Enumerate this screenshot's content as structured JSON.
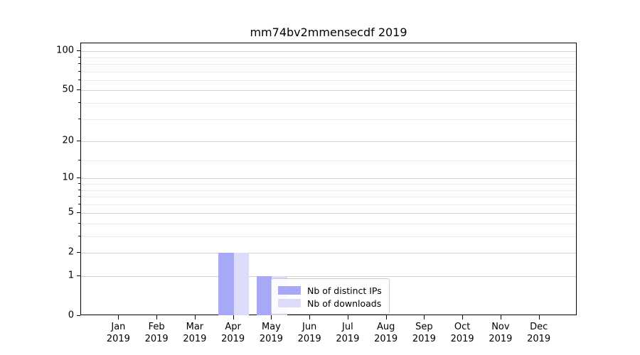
{
  "title": "mm74bv2mmensecdf 2019",
  "chart_data": {
    "type": "bar",
    "title": "mm74bv2mmensecdf 2019",
    "categories": [
      "Jan 2019",
      "Feb 2019",
      "Mar 2019",
      "Apr 2019",
      "May 2019",
      "Jun 2019",
      "Jul 2019",
      "Aug 2019",
      "Sep 2019",
      "Oct 2019",
      "Nov 2019",
      "Dec 2019"
    ],
    "x_tick_months": [
      "Jan",
      "Feb",
      "Mar",
      "Apr",
      "May",
      "Jun",
      "Jul",
      "Aug",
      "Sep",
      "Oct",
      "Nov",
      "Dec"
    ],
    "x_tick_year": "2019",
    "series": [
      {
        "name": "Nb of distinct IPs",
        "color": "#a8a8f8",
        "values": [
          0,
          0,
          0,
          2,
          1,
          0,
          0,
          0,
          0,
          0,
          0,
          0
        ]
      },
      {
        "name": "Nb of downloads",
        "color": "#dcdcfa",
        "values": [
          0,
          0,
          0,
          2,
          1,
          0,
          0,
          0,
          0,
          0,
          0,
          0
        ]
      }
    ],
    "xlabel": "",
    "ylabel": "",
    "yscale": "log10(1+x)",
    "yticks_major": [
      0,
      1,
      2,
      5,
      10,
      20,
      50,
      100
    ],
    "yticks_minor": [
      3,
      4,
      6,
      7,
      8,
      9,
      14,
      30,
      40,
      60,
      70,
      80,
      90
    ],
    "ylim": [
      0,
      115
    ],
    "grid": "horizontal",
    "legend": {
      "position": "lower center",
      "entries": [
        "Nb of distinct IPs",
        "Nb of downloads"
      ]
    }
  },
  "colors": {
    "background": "#ffffff",
    "spine": "#000000",
    "grid_major": "#d2d2d2",
    "grid_minor": "#ebebeb",
    "tick_text": "#000000"
  }
}
